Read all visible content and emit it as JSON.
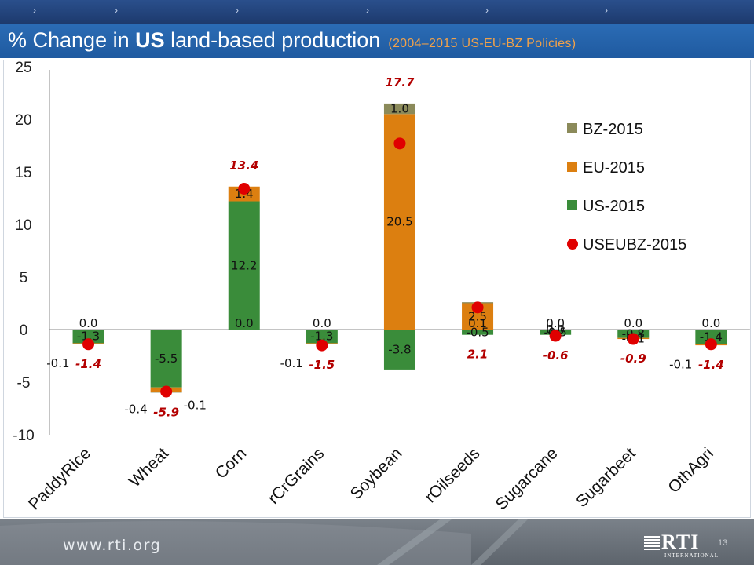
{
  "title": {
    "prefix": "% Change in ",
    "emphasis": "US",
    "main": " land-based production",
    "policy": "(2004–2015 US-EU-BZ Policies)"
  },
  "footer": {
    "url": "www.rti.org",
    "logo_text": "RTI",
    "logo_subtext": "INTERNATIONAL",
    "page_number": "13"
  },
  "colors": {
    "US-2015": "#3a8c3a",
    "EU-2015": "#dc7f10",
    "BZ-2015": "#8b8a5a",
    "USEUBZ-2015": "#e00000",
    "total_label": "#b30000"
  },
  "chart_data": {
    "type": "bar",
    "stacked": true,
    "categories": [
      "PaddyRice",
      "Wheat",
      "Corn",
      "rCrGrains",
      "Soybean",
      "rOilseeds",
      "Sugarcane",
      "Sugarbeet",
      "OthAgri"
    ],
    "ylim": [
      -10,
      25
    ],
    "yticks": [
      -10,
      -5,
      0,
      5,
      10,
      15,
      20,
      25
    ],
    "grid": false,
    "legend_position": "right",
    "series": [
      {
        "name": "US-2015",
        "type": "bar",
        "values": [
          -1.3,
          -5.5,
          12.2,
          -1.3,
          -3.8,
          -0.5,
          -0.5,
          -0.8,
          -1.4
        ],
        "labels": [
          "-1.3",
          "-5.5",
          "12.2",
          "-1.3",
          "-3.8",
          "-0.5",
          "-0.5",
          "-0.8",
          "-1.4"
        ]
      },
      {
        "name": "EU-2015",
        "type": "bar",
        "values": [
          -0.1,
          -0.4,
          1.4,
          -0.1,
          20.5,
          2.5,
          0.0,
          -0.1,
          -0.1
        ],
        "labels": [
          "-0.1",
          "-0.4",
          "1.4",
          "-0.1",
          "20.5",
          "2.5",
          "0.0",
          "-0.1",
          "-0.1"
        ]
      },
      {
        "name": "BZ-2015",
        "type": "bar",
        "values": [
          0.0,
          -0.1,
          0.0,
          0.0,
          1.0,
          0.1,
          0.0,
          0.0,
          0.0
        ],
        "labels": [
          "0.0",
          "-0.1",
          "0.0",
          "0.0",
          "1.0",
          "0.1",
          "0.0",
          "0.0",
          "0.0"
        ]
      },
      {
        "name": "USEUBZ-2015",
        "type": "scatter",
        "values": [
          -1.4,
          -5.9,
          13.4,
          -1.5,
          17.7,
          2.1,
          -0.6,
          -0.9,
          -1.4
        ],
        "labels": [
          "-1.4",
          "-5.9",
          "13.4",
          "-1.5",
          "17.7",
          "2.1",
          "-0.6",
          "-0.9",
          "-1.4"
        ]
      }
    ],
    "legend_order": [
      "BZ-2015",
      "EU-2015",
      "US-2015",
      "USEUBZ-2015"
    ]
  }
}
